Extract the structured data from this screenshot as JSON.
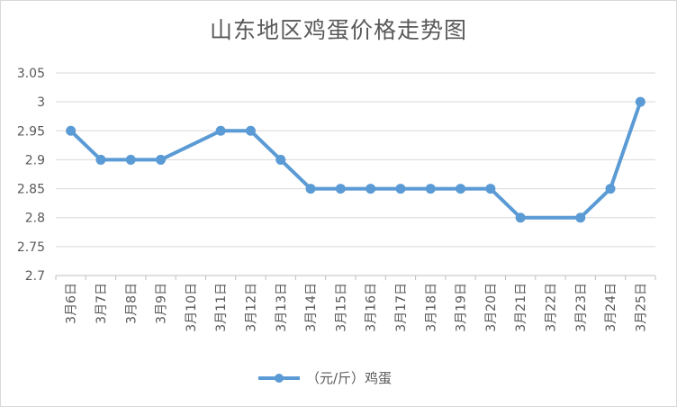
{
  "chart_data": {
    "type": "line",
    "title": "山东地区鸡蛋价格走势图",
    "categories": [
      "3月6日",
      "3月7日",
      "3月8日",
      "3月9日",
      "3月10日",
      "3月11日",
      "3月12日",
      "3月13日",
      "3月14日",
      "3月15日",
      "3月16日",
      "3月17日",
      "3月18日",
      "3月19日",
      "3月20日",
      "3月21日",
      "3月22日",
      "3月23日",
      "3月24日",
      "3月25日"
    ],
    "series": [
      {
        "name": "（元/斤）鸡蛋",
        "color": "#5b9bd5",
        "values": [
          2.95,
          2.9,
          2.9,
          2.9,
          null,
          2.95,
          2.95,
          2.9,
          2.85,
          2.85,
          2.85,
          2.85,
          2.85,
          2.85,
          2.85,
          2.8,
          null,
          2.8,
          2.85,
          3.0
        ]
      }
    ],
    "yticks": [
      "2.7",
      "2.75",
      "2.8",
      "2.85",
      "2.9",
      "2.95",
      "3",
      "3.05"
    ],
    "ylim": [
      2.7,
      3.05
    ],
    "grid": true,
    "legend": "bottom"
  }
}
